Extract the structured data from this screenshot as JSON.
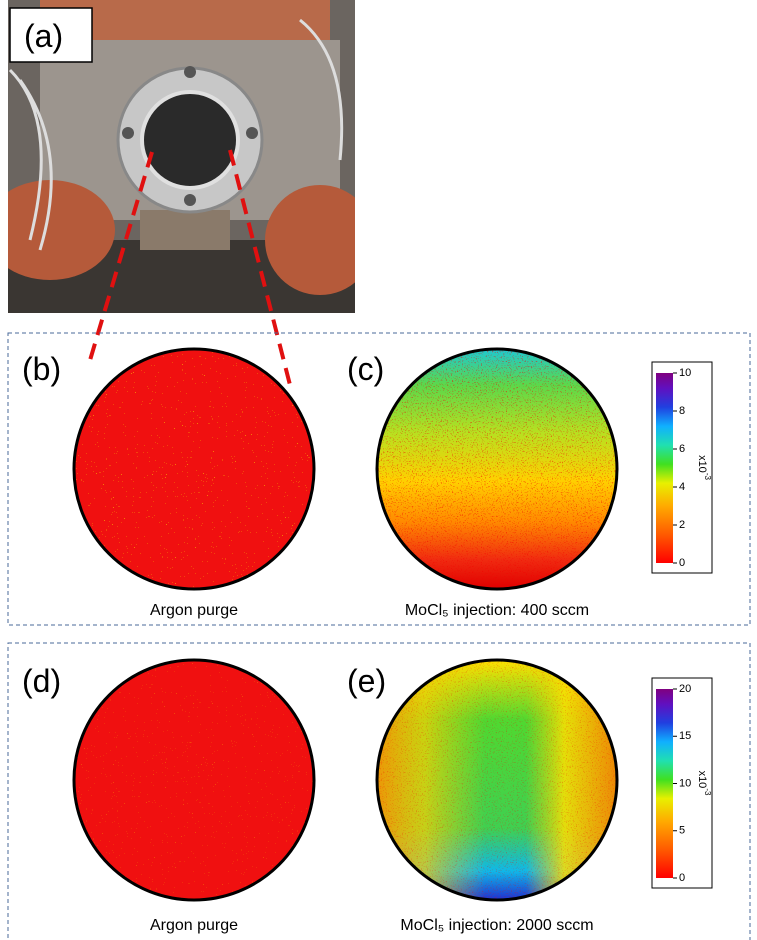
{
  "panels": {
    "a": {
      "label": "(a)"
    },
    "b": {
      "label": "(b)",
      "caption": "Argon purge"
    },
    "c": {
      "label": "(c)",
      "caption": "MoCl₅ injection: 400 sccm",
      "colorbar": {
        "lim": [
          0,
          10
        ],
        "ticks": [
          0,
          2,
          4,
          6,
          8,
          10
        ],
        "unit": "x10",
        "exponent": "-3"
      }
    },
    "d": {
      "label": "(d)",
      "caption": "Argon purge"
    },
    "e": {
      "label": "(e)",
      "caption": "MoCl₅ injection: 2000 sccm",
      "colorbar": {
        "lim": [
          0,
          20
        ],
        "ticks": [
          0,
          5,
          10,
          15,
          20
        ],
        "unit": "x10",
        "exponent": "-3"
      }
    }
  }
}
